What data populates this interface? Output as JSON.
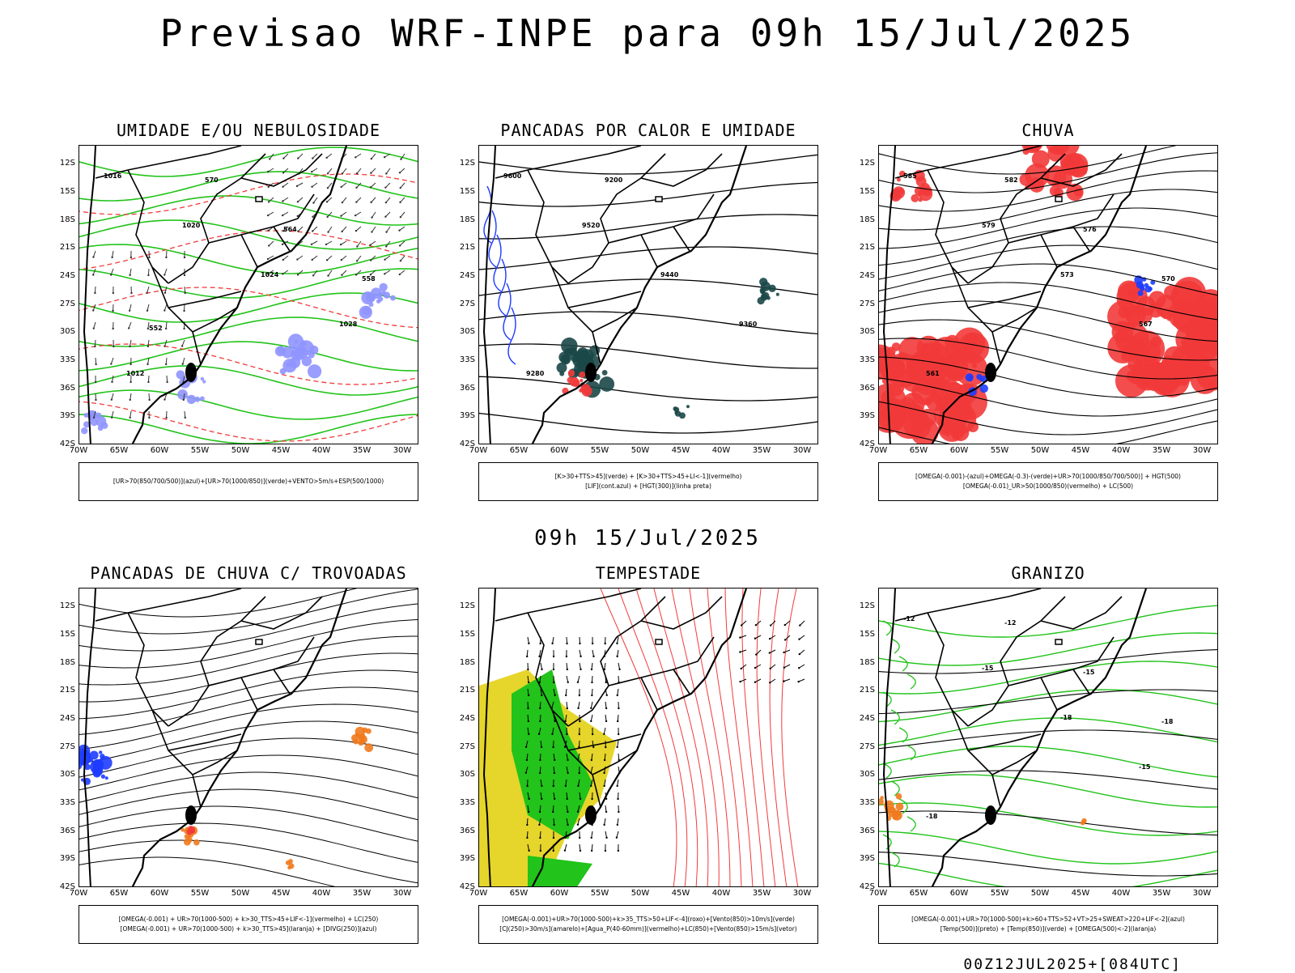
{
  "page_title": "Previsao WRF-INPE  para 09h 15/Jul/2025",
  "mid_title": "09h 15/Jul/2025",
  "footer": "00Z12JUL2025+[084UTC]",
  "axes": {
    "y_ticks": [
      "12S",
      "15S",
      "18S",
      "21S",
      "24S",
      "27S",
      "30S",
      "33S",
      "36S",
      "39S",
      "42S"
    ],
    "x_ticks": [
      "70W",
      "65W",
      "60W",
      "55W",
      "50W",
      "45W",
      "40W",
      "35W",
      "30W"
    ],
    "lat_range": [
      -42,
      -10
    ],
    "lon_range": [
      -70,
      -28
    ]
  },
  "colors": {
    "blue": "#1e3cff",
    "light_blue": "#8f94ff",
    "green": "#22c31a",
    "dark_green": "#1b4747",
    "red": "#f23a3a",
    "orange": "#f07a1d",
    "yellow": "#e6d52b"
  },
  "panels": [
    {
      "title": "UMIDADE E/OU NEBULOSIDADE",
      "legend": [
        "[UR>70(850/700/500)](azul)+[UR>70(1000/850)](verde)+VENTO>5m/s+ESP(500/1000)"
      ],
      "contour_labels": [
        "1016",
        "1020",
        "1024",
        "1028",
        "1012",
        "570",
        "564",
        "558",
        "552"
      ]
    },
    {
      "title": "PANCADAS POR CALOR E UMIDADE",
      "legend": [
        "[K>30+TTS>45](verde) + [K>30+TTS>45+LI<-1](vermelho)",
        "[LIF](cont.azul) + [HGT(300)](linha preta)"
      ],
      "contour_labels": [
        "9600",
        "9520",
        "9440",
        "9360",
        "9280",
        "9200"
      ]
    },
    {
      "title": "CHUVA",
      "legend": [
        "[OMEGA(-0.001)-(azul)+OMEGA(-0.3)-(verde)+UR>70(1000/850/700/500)] + HGT(500)",
        "[OMEGA(-0.01)_UR>50(1000/850)(vermelho) + LC(500)"
      ],
      "contour_labels": [
        "585",
        "579",
        "573",
        "567",
        "561",
        "582",
        "576",
        "570"
      ]
    },
    {
      "title": "PANCADAS DE CHUVA C/ TROVOADAS",
      "legend": [
        "[OMEGA(-0.001) + UR>70(1000-500) + k>30_TTS>45+LIF<-1](vermelho) + LC(250)",
        "[OMEGA(-0.001) + UR>70(1000-500) + k>30_TTS>45](laranja) + [DIVG(250)](azul)"
      ],
      "contour_labels": []
    },
    {
      "title": "TEMPESTADE",
      "legend": [
        "[OMEGA(-0.001)+UR>70(1000-500)+k>35_TTS>50+LIF<-4](roxo)+[Vento(850)>10m/s](verde)",
        "[CJ(250)>30m/s](amarelo)+[Agua_P(40-60mm)](vermelho)+LC(850)+[Vento(850)>15m/s](vetor)"
      ],
      "contour_labels": []
    },
    {
      "title": "GRANIZO",
      "legend": [
        "[OMEGA(-0.001)+UR>70(1000-500)+k>60+TTS>52+VT>25+SWEAT>220+LIF<-2](azul)",
        "[Temp(500)](preto) + [Temp(850)](verde) + [OMEGA(500)<-2](laranja)"
      ],
      "contour_labels": [
        "-12",
        "-15",
        "-18",
        "-15",
        "-18",
        "-12",
        "-15",
        "-18"
      ]
    }
  ]
}
